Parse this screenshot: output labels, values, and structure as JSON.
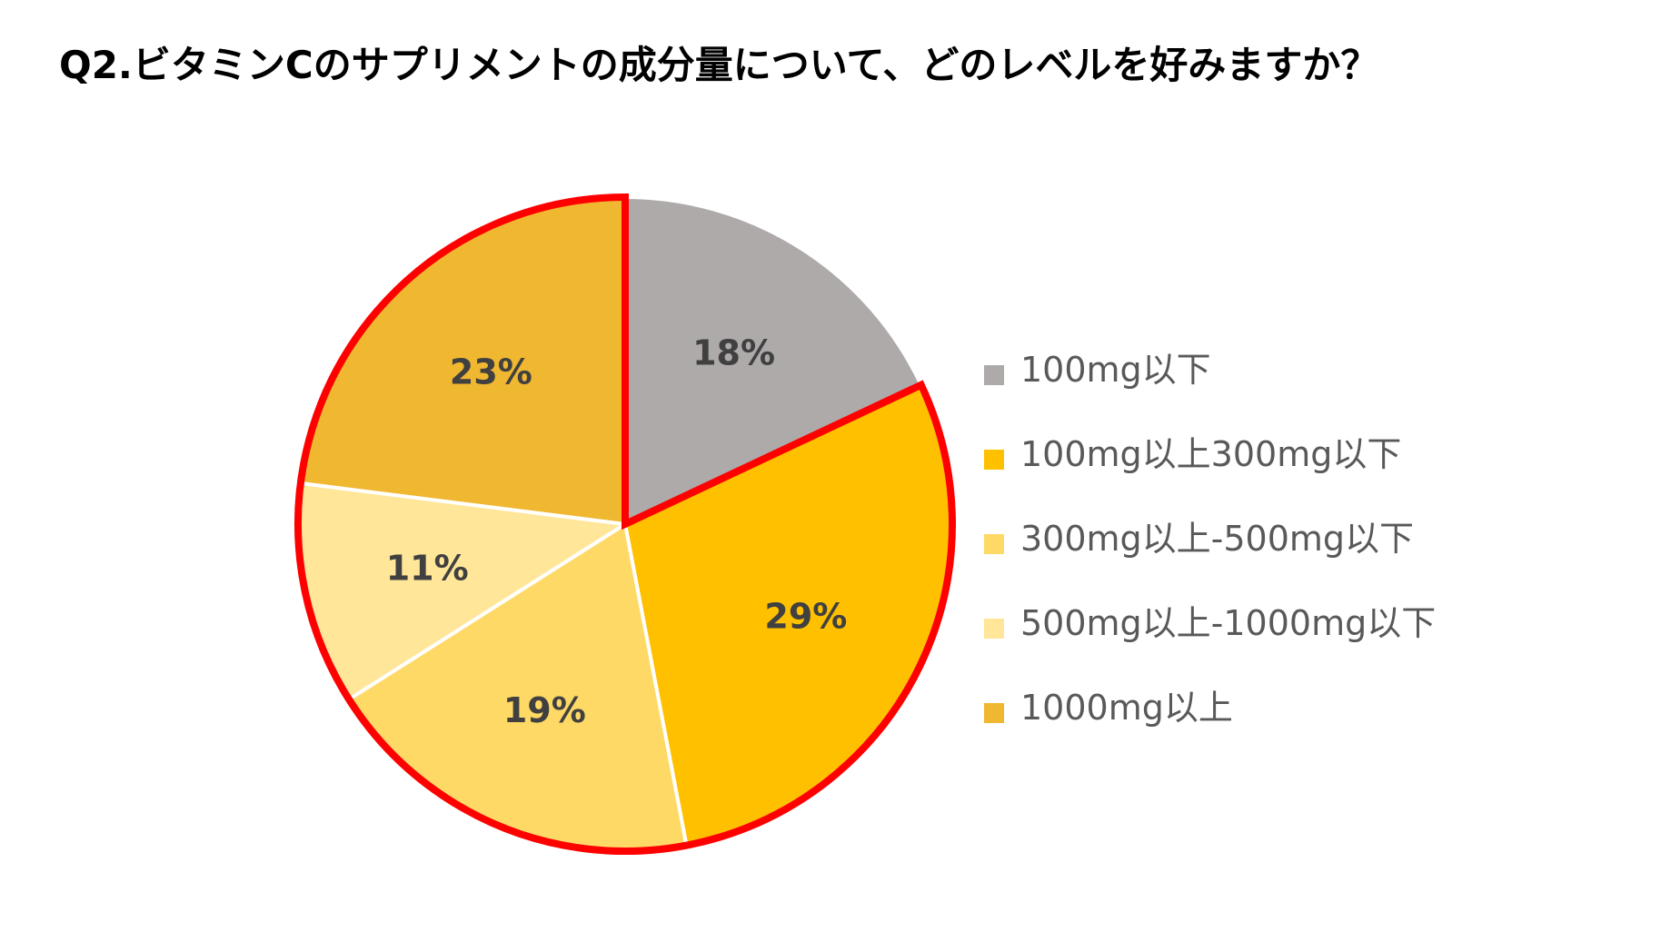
{
  "title": "Q2.ビタミンCのサプリメントの成分量について、どのレベルを好みますか？",
  "chart_data": {
    "type": "pie",
    "title": "Q2.ビタミンCのサプリメントの成分量について、どのレベルを好みますか？",
    "start_angle_deg": 0,
    "direction": "clockwise",
    "highlight": {
      "slices": [
        "100mg以上300mg以下",
        "300mg以上-500mg以下",
        "500mg以上-1000mg以下",
        "1000mg以上"
      ],
      "outline_color": "#FF0000"
    },
    "legend_position": "right",
    "slices": [
      {
        "label": "100mg以下",
        "value": 18,
        "display": "18%",
        "color": "#AEAAAA"
      },
      {
        "label": "100mg以上300mg以下",
        "value": 29,
        "display": "29%",
        "color": "#FFC000"
      },
      {
        "label": "300mg以上-500mg以下",
        "value": 19,
        "display": "19%",
        "color": "#FFD966"
      },
      {
        "label": "500mg以上-1000mg以下",
        "value": 11,
        "display": "11%",
        "color": "#FFE699"
      },
      {
        "label": "1000mg以上",
        "value": 23,
        "display": "23%",
        "color": "#F0B730"
      }
    ]
  }
}
